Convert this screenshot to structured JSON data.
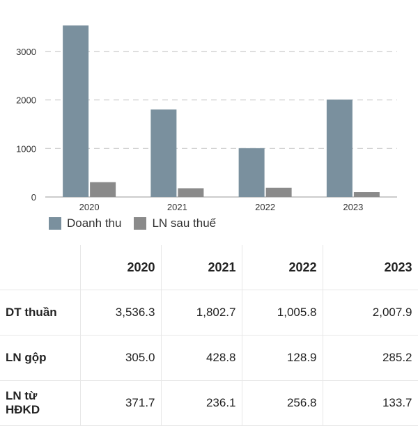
{
  "chart_data": {
    "type": "bar",
    "categories": [
      "2020",
      "2021",
      "2022",
      "2023"
    ],
    "series": [
      {
        "name": "Doanh thu",
        "color": "#7a909e",
        "values": [
          3536.3,
          1802.7,
          1005.8,
          2007.9
        ]
      },
      {
        "name": "LN sau thuế",
        "color": "#8a8a8a",
        "values": [
          305.0,
          180.0,
          190.0,
          100.0
        ]
      }
    ],
    "yticks": [
      "0",
      "1000",
      "2000",
      "3000"
    ],
    "ylim": [
      0,
      3600
    ],
    "grid": true,
    "legend": "bottom-left"
  },
  "table": {
    "headers": [
      "",
      "2020",
      "2021",
      "2022",
      "2023"
    ],
    "rows": [
      {
        "label": "DT thuần",
        "values": [
          "3,536.3",
          "1,802.7",
          "1,005.8",
          "2,007.9"
        ]
      },
      {
        "label": "LN gộp",
        "values": [
          "305.0",
          "428.8",
          "128.9",
          "285.2"
        ]
      },
      {
        "label": "LN từ HĐKD",
        "values": [
          "371.7",
          "236.1",
          "256.8",
          "133.7"
        ]
      }
    ]
  }
}
